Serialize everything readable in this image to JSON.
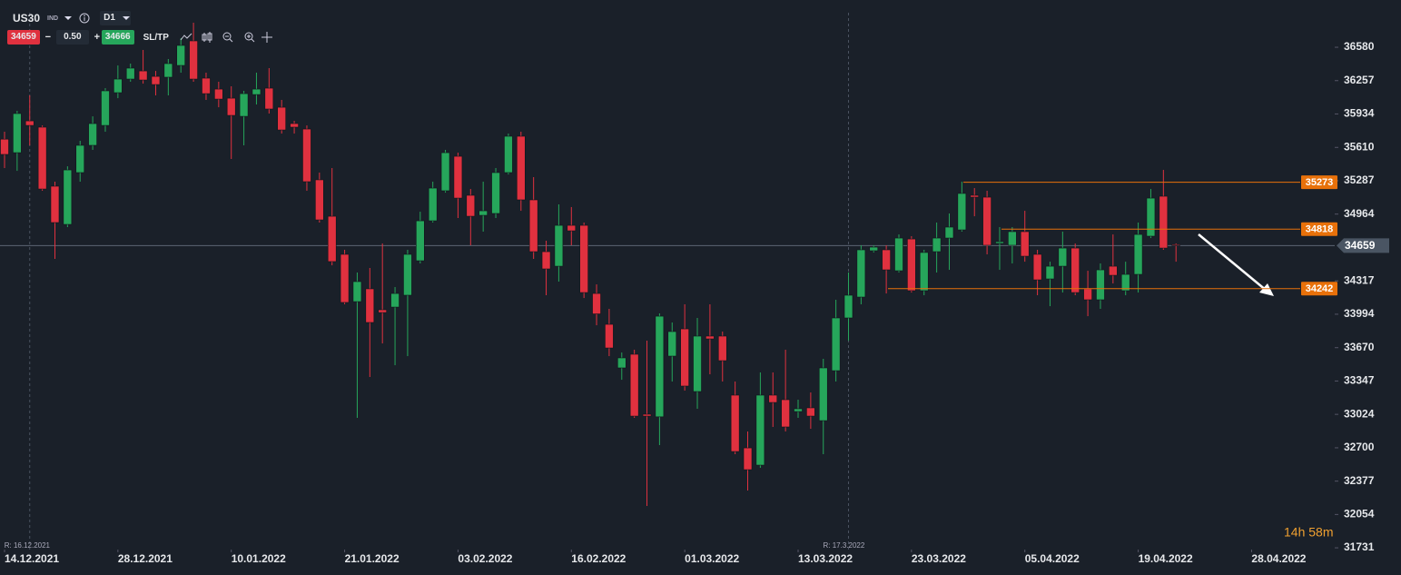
{
  "chart_data": {
    "type": "candlestick",
    "symbol": "US30",
    "instrument_type": "IND",
    "timeframe": "D1",
    "toolbar": {
      "sell_price": "34659",
      "minus": "−",
      "lot": "0.50",
      "plus": "+",
      "buy_price": "34666",
      "sl_tp": "SL/TP"
    },
    "up_color": "#26a65b",
    "down_color": "#e0313f",
    "x": [
      0,
      1,
      2,
      3,
      4,
      5,
      6,
      7,
      8,
      9,
      10,
      11,
      12,
      13,
      14,
      15,
      16,
      17,
      18,
      19,
      20,
      21,
      22,
      23,
      24,
      25,
      26,
      27,
      28,
      29,
      30,
      31,
      32,
      33,
      34,
      35,
      36,
      37,
      38,
      39,
      40,
      41,
      42,
      43,
      44,
      45,
      46,
      47,
      48,
      49,
      50,
      51,
      52,
      53,
      54,
      55,
      56,
      57,
      58,
      59,
      60,
      61,
      62,
      63,
      64,
      65,
      66,
      67,
      68,
      69,
      70,
      71,
      72,
      73,
      74,
      75,
      76,
      77,
      78,
      79,
      80,
      81,
      82,
      83,
      84,
      85,
      86,
      87,
      88,
      89,
      90,
      91,
      92,
      93
    ],
    "open": [
      35690,
      35559,
      35867,
      35806,
      35234,
      34864,
      35366,
      35630,
      35823,
      36140,
      36272,
      36351,
      36298,
      36290,
      36404,
      36642,
      36281,
      36175,
      36087,
      35911,
      36122,
      36184,
      35999,
      35841,
      35788,
      35296,
      34943,
      34574,
      34116,
      34240,
      34037,
      34063,
      34178,
      34512,
      34899,
      35190,
      35524,
      35146,
      34952,
      34970,
      35366,
      35718,
      35102,
      34600,
      34459,
      34855,
      34855,
      34195,
      33896,
      33474,
      33606,
      33025,
      33000,
      33588,
      33852,
      33245,
      33782,
      33782,
      33210,
      32699,
      32532,
      33210,
      33166,
      33051,
      33087,
      32963,
      33447,
      33958,
      34160,
      34609,
      34618,
      34415,
      34723,
      34222,
      34600,
      34732,
      34811,
      35146,
      35128,
      34680,
      34662,
      34794,
      34574,
      34336,
      34459,
      34635,
      34240,
      34134,
      34459,
      34222,
      34380,
      34750,
      35137,
      34668
    ],
    "high": [
      35762,
      35964,
      36114,
      35823,
      35278,
      35427,
      35674,
      35911,
      36184,
      36404,
      36422,
      36554,
      36351,
      36466,
      36668,
      36818,
      36334,
      36246,
      36202,
      36158,
      36334,
      36378,
      36070,
      35867,
      35823,
      35366,
      35410,
      34618,
      34398,
      34442,
      34679,
      34257,
      34618,
      34987,
      35278,
      35586,
      35559,
      35207,
      35278,
      35410,
      35744,
      35762,
      35322,
      34706,
      35058,
      35032,
      34882,
      34283,
      34046,
      33623,
      33650,
      33738,
      34002,
      33914,
      34090,
      33958,
      34090,
      33826,
      33342,
      32858,
      33430,
      33430,
      33650,
      33166,
      33236,
      33562,
      34134,
      34398,
      34662,
      34662,
      34662,
      34767,
      34750,
      34618,
      34882,
      34970,
      35278,
      35216,
      35190,
      34838,
      34838,
      34996,
      34618,
      34503,
      34794,
      34679,
      34415,
      34486,
      34767,
      34503,
      34882,
      35207,
      35392,
      34679
    ],
    "low": [
      35410,
      35383,
      35630,
      35190,
      34530,
      34838,
      35278,
      35586,
      35762,
      36087,
      36246,
      36228,
      36114,
      36114,
      36334,
      36246,
      36070,
      35999,
      35498,
      35630,
      36026,
      35938,
      35744,
      35744,
      35190,
      34882,
      34468,
      34090,
      32990,
      33386,
      33711,
      33500,
      33588,
      34486,
      34882,
      35172,
      34926,
      34662,
      34794,
      34926,
      35348,
      34996,
      34530,
      34178,
      34310,
      34662,
      34151,
      33887,
      33588,
      33359,
      32990,
      32136,
      32726,
      33342,
      33254,
      33078,
      33412,
      33342,
      32638,
      32286,
      32506,
      32902,
      32858,
      32990,
      32884,
      32638,
      33342,
      33738,
      34090,
      34592,
      34195,
      34398,
      34204,
      34178,
      34398,
      34424,
      34794,
      34943,
      34574,
      34424,
      34486,
      34503,
      34178,
      34072,
      34204,
      34178,
      33975,
      34046,
      34292,
      34178,
      34204,
      34732,
      34618,
      34503
    ],
    "close": [
      35542,
      35938,
      35823,
      35207,
      34882,
      35392,
      35630,
      35841,
      36158,
      36272,
      36378,
      36263,
      36219,
      36422,
      36598,
      36272,
      36131,
      36078,
      35920,
      36131,
      36175,
      35982,
      35779,
      35806,
      35278,
      34908,
      34504,
      34108,
      34310,
      33914,
      34010,
      34195,
      34574,
      34899,
      35216,
      35559,
      35119,
      34943,
      34996,
      35366,
      35718,
      35102,
      34600,
      34433,
      34855,
      34802,
      34204,
      33997,
      33667,
      33571,
      33007,
      33007,
      33975,
      33826,
      33298,
      33782,
      33755,
      33544,
      32664,
      32488,
      33210,
      33139,
      32902,
      33078,
      33007,
      33474,
      33958,
      34178,
      34618,
      34644,
      34424,
      34732,
      34222,
      34592,
      34732,
      34838,
      35164,
      35128,
      34662,
      34697,
      34794,
      34556,
      34327,
      34459,
      34635,
      34204,
      34134,
      34424,
      34371,
      34380,
      34767,
      35119,
      34635,
      34659
    ],
    "xlim": [
      -0.36,
      105.6
    ],
    "ylim": [
      31714,
      37038
    ],
    "xticks": [
      {
        "value": 0,
        "label": "14.12.2021"
      },
      {
        "value": 9,
        "label": "28.12.2021"
      },
      {
        "value": 18,
        "label": "10.01.2022"
      },
      {
        "value": 27,
        "label": "21.01.2022"
      },
      {
        "value": 36,
        "label": "03.02.2022"
      },
      {
        "value": 45,
        "label": "16.02.2022"
      },
      {
        "value": 54,
        "label": "01.03.2022"
      },
      {
        "value": 63,
        "label": "13.03.2022"
      },
      {
        "value": 72,
        "label": "23.03.2022"
      },
      {
        "value": 81,
        "label": "05.04.2022"
      },
      {
        "value": 90,
        "label": "19.04.2022"
      },
      {
        "value": 99,
        "label": "28.04.2022"
      }
    ],
    "yticks": [
      31731,
      32054,
      32377,
      32700,
      33024,
      33347,
      33670,
      33994,
      34317,
      34964,
      35287,
      35610,
      35934,
      36257,
      36580
    ],
    "current_price": 34659,
    "levels": [
      {
        "value": 35273,
        "color": "#e8710a"
      },
      {
        "value": 34818,
        "color": "#e8710a"
      },
      {
        "value": 34242,
        "color": "#e8710a"
      }
    ],
    "markers": [
      {
        "x": 2,
        "label": "R: 16.12.2021"
      },
      {
        "x": 67,
        "label": "R: 17.3.2022"
      }
    ],
    "countdown": "14h 58m"
  }
}
